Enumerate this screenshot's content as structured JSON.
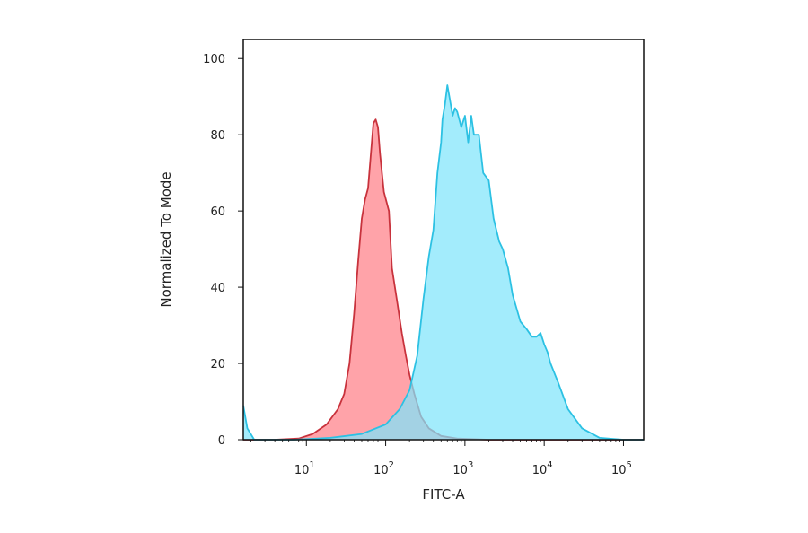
{
  "chart_data": {
    "type": "area",
    "title": "",
    "xlabel": "FITC-A",
    "ylabel": "Normalized To Mode",
    "x_scale": "log",
    "xlim": [
      1.6,
      180000
    ],
    "ylim": [
      0,
      105
    ],
    "x_ticks": [
      {
        "base": "10",
        "exp": "1",
        "value": 10
      },
      {
        "base": "10",
        "exp": "2",
        "value": 100
      },
      {
        "base": "10",
        "exp": "3",
        "value": 1000
      },
      {
        "base": "10",
        "exp": "4",
        "value": 10000
      },
      {
        "base": "10",
        "exp": "5",
        "value": 100000
      }
    ],
    "y_ticks": [
      "0",
      "20",
      "40",
      "60",
      "80",
      "100"
    ],
    "grid": false,
    "legend": "none",
    "series": [
      {
        "color_fill": "#ff7f88",
        "color_line": "#c8323c",
        "points": [
          [
            1.6,
            0
          ],
          [
            4,
            0
          ],
          [
            8,
            0.3
          ],
          [
            12,
            1.5
          ],
          [
            18,
            4
          ],
          [
            25,
            8
          ],
          [
            30,
            12
          ],
          [
            35,
            20
          ],
          [
            40,
            33
          ],
          [
            45,
            47
          ],
          [
            50,
            58
          ],
          [
            55,
            63
          ],
          [
            60,
            66
          ],
          [
            65,
            75
          ],
          [
            70,
            83
          ],
          [
            75,
            84
          ],
          [
            80,
            82
          ],
          [
            85,
            75
          ],
          [
            95,
            65
          ],
          [
            110,
            60
          ],
          [
            120,
            45
          ],
          [
            140,
            36
          ],
          [
            160,
            28
          ],
          [
            180,
            22
          ],
          [
            200,
            17
          ],
          [
            230,
            12
          ],
          [
            280,
            6
          ],
          [
            350,
            3
          ],
          [
            500,
            1
          ],
          [
            800,
            0.3
          ],
          [
            2000,
            0
          ],
          [
            180000,
            0
          ]
        ]
      },
      {
        "color_fill": "#7fe4fb",
        "color_line": "#2cc1e3",
        "points": [
          [
            1.6,
            9
          ],
          [
            1.8,
            3
          ],
          [
            2.2,
            0
          ],
          [
            7,
            0
          ],
          [
            20,
            0.5
          ],
          [
            50,
            1.5
          ],
          [
            100,
            4
          ],
          [
            150,
            8
          ],
          [
            200,
            13
          ],
          [
            250,
            22
          ],
          [
            300,
            37
          ],
          [
            350,
            48
          ],
          [
            400,
            55
          ],
          [
            450,
            70
          ],
          [
            500,
            78
          ],
          [
            520,
            84
          ],
          [
            560,
            88
          ],
          [
            600,
            93
          ],
          [
            650,
            89
          ],
          [
            700,
            85
          ],
          [
            750,
            87
          ],
          [
            800,
            86
          ],
          [
            900,
            82
          ],
          [
            1000,
            85
          ],
          [
            1100,
            78
          ],
          [
            1200,
            85
          ],
          [
            1300,
            80
          ],
          [
            1500,
            80
          ],
          [
            1700,
            70
          ],
          [
            2000,
            68
          ],
          [
            2300,
            58
          ],
          [
            2700,
            52
          ],
          [
            3000,
            50
          ],
          [
            3500,
            45
          ],
          [
            4000,
            38
          ],
          [
            5000,
            31
          ],
          [
            6000,
            29
          ],
          [
            7000,
            27
          ],
          [
            8000,
            27
          ],
          [
            9000,
            28
          ],
          [
            10000,
            25
          ],
          [
            11000,
            23
          ],
          [
            12000,
            20
          ],
          [
            15000,
            15
          ],
          [
            20000,
            8
          ],
          [
            30000,
            3
          ],
          [
            50000,
            0.5
          ],
          [
            100000,
            0
          ],
          [
            180000,
            0
          ]
        ]
      }
    ]
  }
}
